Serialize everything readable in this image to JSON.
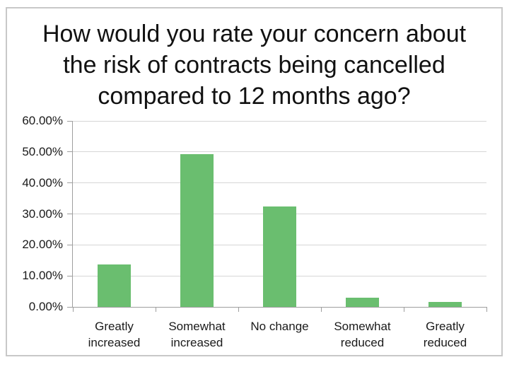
{
  "chart": {
    "title_lines": [
      "How would you rate your concern about",
      "the risk of contracts being cancelled",
      "compared to 12 months ago?"
    ]
  },
  "chart_data": {
    "type": "bar",
    "title": "How would you rate your concern about the risk of contracts being cancelled compared to 12 months ago?",
    "categories": [
      "Greatly increased",
      "Somewhat increased",
      "No change",
      "Somewhat reduced",
      "Greatly reduced"
    ],
    "values": [
      13.8,
      49.3,
      32.3,
      3.0,
      1.5
    ],
    "unit": "%",
    "xlabel": "",
    "ylabel": "",
    "ylim": [
      0,
      60
    ],
    "y_tick_step": 10,
    "y_tick_labels": [
      "0.00%",
      "10.00%",
      "20.00%",
      "30.00%",
      "40.00%",
      "50.00%",
      "60.00%"
    ],
    "grid": "horizontal",
    "legend": "none",
    "colors": {
      "bar": "#6ABE6F",
      "gridline": "#D6D6D6",
      "axis": "#9E9E9E",
      "frame_border": "#C8C8C8",
      "text": "#1A1A1A"
    }
  }
}
